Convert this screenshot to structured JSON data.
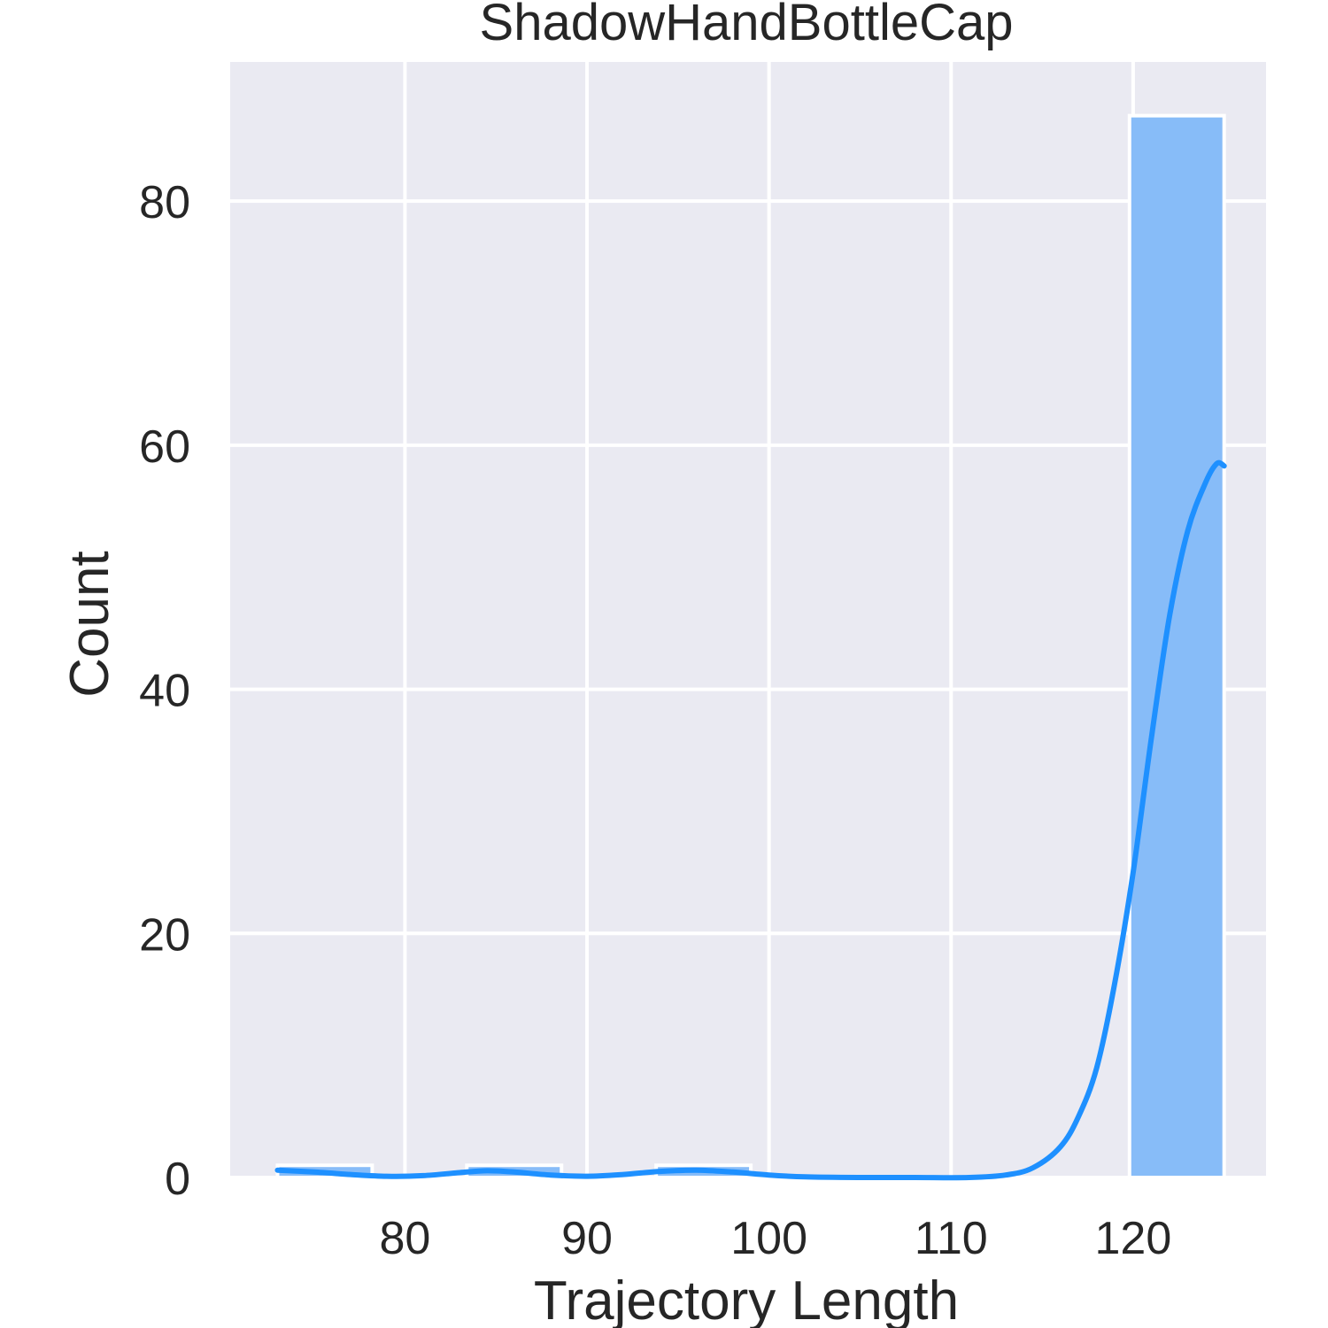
{
  "chart_data": {
    "type": "bar",
    "title": "ShadowHandBottleCap",
    "xlabel": "Trajectory Length",
    "ylabel": "Count",
    "x_ticks": [
      80,
      90,
      100,
      110,
      120
    ],
    "y_ticks": [
      0,
      20,
      40,
      60,
      80
    ],
    "xlim": [
      70.4,
      127.3
    ],
    "ylim": [
      0,
      91.4
    ],
    "grid": true,
    "bins": [
      {
        "x0": 73,
        "x1": 78.2,
        "count": 1
      },
      {
        "x0": 78.2,
        "x1": 83.4,
        "count": 0
      },
      {
        "x0": 83.4,
        "x1": 88.6,
        "count": 1
      },
      {
        "x0": 88.6,
        "x1": 93.8,
        "count": 0
      },
      {
        "x0": 93.8,
        "x1": 99,
        "count": 1
      },
      {
        "x0": 99,
        "x1": 104.2,
        "count": 0
      },
      {
        "x0": 104.2,
        "x1": 109.4,
        "count": 0
      },
      {
        "x0": 109.4,
        "x1": 114.6,
        "count": 0
      },
      {
        "x0": 114.6,
        "x1": 119.8,
        "count": 0
      },
      {
        "x0": 119.8,
        "x1": 125,
        "count": 87
      }
    ],
    "kde": {
      "x": [
        73,
        75,
        77,
        79,
        81,
        83,
        84.5,
        86,
        88,
        90,
        92,
        94,
        96,
        98,
        100,
        102,
        105,
        108,
        111,
        113,
        114.5,
        116,
        117,
        118,
        119,
        120,
        121,
        122,
        123,
        124,
        124.6,
        125
      ],
      "y": [
        0.6,
        0.45,
        0.25,
        0.1,
        0.15,
        0.4,
        0.55,
        0.45,
        0.2,
        0.1,
        0.25,
        0.5,
        0.6,
        0.45,
        0.2,
        0.05,
        0.0,
        0.0,
        0.0,
        0.2,
        0.8,
        2.5,
        5,
        9,
        16,
        25,
        36,
        46,
        53,
        57,
        58.5,
        58.3
      ]
    },
    "colors": {
      "bar_fill": "#87bcf8",
      "bar_stroke": "#ffffff",
      "kde_line": "#1e90ff",
      "plot_bg": "#eaeaf2",
      "grid": "#ffffff",
      "text": "#262626"
    }
  }
}
